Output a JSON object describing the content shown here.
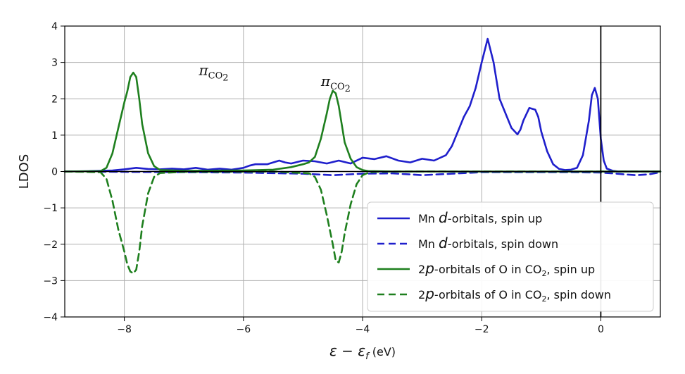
{
  "chart_data": {
    "type": "line",
    "xlabel": "ε − εf (eV)",
    "xlabel_parts": {
      "main": "ε − ε",
      "sub": "f",
      "unit": " (eV)"
    },
    "ylabel": "LDOS",
    "xlim": [
      -9,
      1
    ],
    "ylim": [
      -4,
      4
    ],
    "xticks": [
      -8,
      -6,
      -4,
      -2,
      0
    ],
    "xtick_labels": [
      "−8",
      "−6",
      "−4",
      "−2",
      "0"
    ],
    "yticks": [
      -4,
      -3,
      -2,
      -1,
      0,
      1,
      2,
      3,
      4
    ],
    "ytick_labels": [
      "−4",
      "−3",
      "−2",
      "−1",
      "0",
      "1",
      "2",
      "3",
      "4"
    ],
    "grid": true,
    "fermi_line_x": 0,
    "legend_position": "bottom-right",
    "annotations": [
      {
        "text": "π",
        "sub": "CO",
        "subsub": "2",
        "x": -6.5,
        "y": 2.65
      },
      {
        "text": "π",
        "sub": "CO",
        "subsub": "2",
        "x": -4.45,
        "y": 2.35
      }
    ],
    "series": [
      {
        "name": "Mn d-orbitals, spin up",
        "legend": {
          "pre": "Mn ",
          "italic": "d",
          "post": "-orbitals, spin up"
        },
        "color": "#1f1fcc",
        "dash": "solid",
        "x": [
          -9,
          -8.6,
          -8.2,
          -8.0,
          -7.8,
          -7.6,
          -7.4,
          -7.2,
          -7.0,
          -6.8,
          -6.6,
          -6.4,
          -6.2,
          -6.0,
          -5.9,
          -5.8,
          -5.6,
          -5.4,
          -5.3,
          -5.2,
          -5.0,
          -4.8,
          -4.6,
          -4.4,
          -4.2,
          -4.0,
          -3.8,
          -3.6,
          -3.4,
          -3.2,
          -3.0,
          -2.8,
          -2.6,
          -2.5,
          -2.4,
          -2.3,
          -2.2,
          -2.1,
          -2.0,
          -1.9,
          -1.8,
          -1.7,
          -1.6,
          -1.5,
          -1.4,
          -1.35,
          -1.3,
          -1.2,
          -1.1,
          -1.05,
          -1.0,
          -0.9,
          -0.8,
          -0.7,
          -0.6,
          -0.5,
          -0.4,
          -0.3,
          -0.2,
          -0.15,
          -0.1,
          -0.05,
          0.0,
          0.05,
          0.1,
          0.2,
          0.3,
          0.5,
          1.0
        ],
        "y": [
          0.0,
          0.01,
          0.03,
          0.06,
          0.1,
          0.07,
          0.06,
          0.08,
          0.06,
          0.1,
          0.05,
          0.08,
          0.05,
          0.1,
          0.16,
          0.2,
          0.2,
          0.3,
          0.25,
          0.22,
          0.3,
          0.28,
          0.22,
          0.3,
          0.22,
          0.38,
          0.34,
          0.42,
          0.3,
          0.25,
          0.35,
          0.3,
          0.45,
          0.7,
          1.1,
          1.5,
          1.8,
          2.3,
          3.0,
          3.65,
          3.0,
          2.0,
          1.6,
          1.2,
          1.02,
          1.15,
          1.4,
          1.75,
          1.7,
          1.5,
          1.1,
          0.55,
          0.2,
          0.07,
          0.04,
          0.05,
          0.1,
          0.45,
          1.4,
          2.1,
          2.3,
          2.0,
          0.9,
          0.3,
          0.08,
          0.02,
          0.0,
          0.0,
          0.0
        ]
      },
      {
        "name": "Mn d-orbitals, spin down",
        "legend": {
          "pre": "Mn ",
          "italic": "d",
          "post": "-orbitals, spin down"
        },
        "color": "#1f1fcc",
        "dash": "dashed",
        "x": [
          -9,
          -8.0,
          -7.0,
          -6.0,
          -5.0,
          -4.5,
          -4.0,
          -3.5,
          -3.0,
          -2.5,
          -2.0,
          -1.5,
          -1.0,
          -0.5,
          0.0,
          0.2,
          0.4,
          0.6,
          0.8,
          1.0
        ],
        "y": [
          0.0,
          -0.01,
          -0.02,
          -0.03,
          -0.06,
          -0.1,
          -0.06,
          -0.05,
          -0.1,
          -0.06,
          -0.02,
          -0.02,
          -0.02,
          -0.02,
          -0.03,
          -0.05,
          -0.08,
          -0.1,
          -0.08,
          -0.02
        ]
      },
      {
        "name": "2p-orbitals of O in CO2, spin up",
        "legend": {
          "pre": "2",
          "italic": "p",
          "post": "-orbitals of O in CO",
          "post_sub": "2",
          "tail": ", spin up"
        },
        "color": "#1e7f1e",
        "dash": "solid",
        "x": [
          -9,
          -8.4,
          -8.3,
          -8.2,
          -8.1,
          -8.0,
          -7.95,
          -7.9,
          -7.85,
          -7.8,
          -7.75,
          -7.7,
          -7.6,
          -7.5,
          -7.4,
          -7.0,
          -6.0,
          -5.5,
          -5.2,
          -5.0,
          -4.9,
          -4.8,
          -4.7,
          -4.6,
          -4.55,
          -4.5,
          -4.45,
          -4.4,
          -4.35,
          -4.3,
          -4.2,
          -4.1,
          -4.0,
          -3.9,
          -3.8,
          -3.5,
          -2.0,
          0.0,
          1.0
        ],
        "y": [
          0.0,
          0.01,
          0.1,
          0.5,
          1.2,
          1.9,
          2.2,
          2.6,
          2.72,
          2.6,
          2.0,
          1.3,
          0.5,
          0.15,
          0.04,
          0.02,
          0.03,
          0.05,
          0.12,
          0.2,
          0.25,
          0.4,
          0.9,
          1.6,
          2.0,
          2.22,
          2.15,
          1.8,
          1.3,
          0.8,
          0.35,
          0.12,
          0.04,
          0.01,
          0.01,
          0.0,
          0.0,
          0.0,
          0.0
        ]
      },
      {
        "name": "2p-orbitals of O in CO2, spin down",
        "legend": {
          "pre": "2",
          "italic": "p",
          "post": "-orbitals of O in CO",
          "post_sub": "2",
          "tail": ", spin down"
        },
        "color": "#1e7f1e",
        "dash": "dashed",
        "x": [
          -9,
          -8.4,
          -8.3,
          -8.2,
          -8.1,
          -8.0,
          -7.95,
          -7.9,
          -7.85,
          -7.8,
          -7.75,
          -7.7,
          -7.6,
          -7.5,
          -7.4,
          -7.0,
          -5.5,
          -4.9,
          -4.8,
          -4.7,
          -4.6,
          -4.5,
          -4.45,
          -4.4,
          -4.35,
          -4.3,
          -4.2,
          -4.1,
          -4.0,
          -3.9,
          -3.8,
          -3.5,
          0.0,
          1.0
        ],
        "y": [
          0.0,
          -0.02,
          -0.2,
          -0.8,
          -1.6,
          -2.2,
          -2.55,
          -2.75,
          -2.8,
          -2.7,
          -2.2,
          -1.5,
          -0.6,
          -0.15,
          -0.04,
          -0.01,
          0.0,
          -0.05,
          -0.15,
          -0.5,
          -1.2,
          -2.0,
          -2.45,
          -2.5,
          -2.2,
          -1.7,
          -0.9,
          -0.35,
          -0.1,
          -0.03,
          -0.01,
          0.0,
          0.0,
          0.0
        ]
      }
    ]
  }
}
